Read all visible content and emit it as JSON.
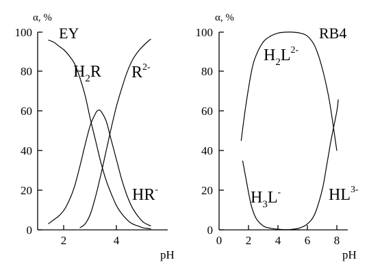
{
  "chart_data": [
    {
      "type": "line",
      "title": "EY",
      "ylabel": "α, %",
      "xlabel": "pH",
      "xlim": [
        1.0,
        5.8
      ],
      "ylim": [
        0,
        100
      ],
      "xticks": [
        "2",
        "4"
      ],
      "yticks": [
        "0",
        "20",
        "40",
        "60",
        "80",
        "100"
      ],
      "grid": false,
      "series": [
        {
          "name_parts": {
            "base": "H",
            "sub": "2",
            "rest": "R",
            "sup": ""
          },
          "x": [
            1.4,
            1.6,
            1.8,
            2.0,
            2.2,
            2.4,
            2.6,
            2.8,
            3.0,
            3.2,
            3.4,
            3.6,
            3.8,
            4.0,
            4.2,
            4.4,
            4.6,
            4.8,
            5.0,
            5.2,
            5.3
          ],
          "y": [
            96,
            95,
            93,
            91,
            88,
            84,
            77,
            68,
            56,
            45,
            34,
            25,
            18,
            12,
            8,
            5,
            3,
            2,
            1,
            0.7,
            0.5
          ]
        },
        {
          "name_parts": {
            "base": "HR",
            "sub": "",
            "rest": "",
            "sup": "-"
          },
          "x": [
            1.4,
            1.6,
            1.8,
            2.0,
            2.2,
            2.4,
            2.6,
            2.8,
            3.0,
            3.2,
            3.3,
            3.4,
            3.6,
            3.8,
            4.0,
            4.2,
            4.4,
            4.6,
            4.8,
            5.0,
            5.2,
            5.3
          ],
          "y": [
            3,
            5,
            7,
            10,
            15,
            22,
            32,
            43,
            53,
            59,
            60.5,
            60,
            55,
            45,
            35,
            25,
            17,
            11,
            7,
            4,
            2.5,
            2
          ]
        },
        {
          "name_parts": {
            "base": "R",
            "sub": "",
            "rest": "",
            "sup": "2-"
          },
          "x": [
            2.6,
            2.8,
            3.0,
            3.2,
            3.4,
            3.6,
            3.8,
            4.0,
            4.2,
            4.4,
            4.6,
            4.8,
            5.0,
            5.2,
            5.3
          ],
          "y": [
            1,
            3,
            8,
            17,
            28,
            40,
            52,
            63,
            72,
            80,
            86,
            90,
            93,
            95.5,
            96.5
          ]
        }
      ]
    },
    {
      "type": "line",
      "title": "RB4",
      "ylabel": "α, %",
      "xlabel": "pH",
      "xlim": [
        0,
        8.8
      ],
      "ylim": [
        0,
        100
      ],
      "xticks": [
        "0",
        "2",
        "4",
        "6",
        "8"
      ],
      "yticks": [
        "0",
        "20",
        "40",
        "60",
        "80",
        "100"
      ],
      "grid": false,
      "series": [
        {
          "name_parts": {
            "base": "H",
            "sub": "3",
            "rest": "L",
            "sup": "-"
          },
          "x": [
            1.6,
            1.8,
            2.0,
            2.2,
            2.5,
            3.0,
            3.5,
            4.0,
            4.5,
            5.0,
            5.5
          ],
          "y": [
            35,
            27,
            19,
            12,
            6,
            2,
            0.8,
            0.3,
            0.1,
            0,
            0
          ]
        },
        {
          "name_parts": {
            "base": "H",
            "sub": "2",
            "rest": "L",
            "sup": "2-"
          },
          "x": [
            1.5,
            1.8,
            2.2,
            2.5,
            3.0,
            3.5,
            4.0,
            4.5,
            5.0,
            5.5,
            6.0,
            6.5,
            7.0,
            7.5,
            8.0
          ],
          "y": [
            45,
            62,
            80,
            88,
            95,
            98,
            99.5,
            100,
            100,
            99.5,
            98,
            93,
            82,
            65,
            40
          ]
        },
        {
          "name_parts": {
            "base": "HL",
            "sub": "",
            "rest": "",
            "sup": "3-"
          },
          "x": [
            4.5,
            5.0,
            5.5,
            6.0,
            6.5,
            7.0,
            7.3,
            7.6,
            8.0,
            8.1
          ],
          "y": [
            0,
            0.3,
            1,
            3,
            8,
            20,
            32,
            45,
            60,
            66
          ]
        }
      ]
    }
  ]
}
